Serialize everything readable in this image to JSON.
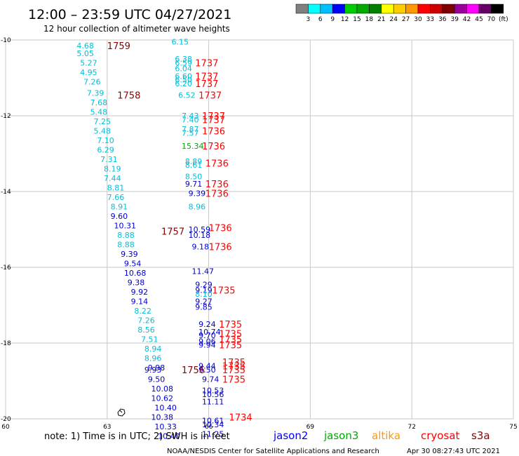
{
  "header": {
    "title": "12:00 – 23:59 UTC 04/27/2021",
    "subtitle": "12 hour collection of altimeter wave heights"
  },
  "colorbar": {
    "colors": [
      "#808080",
      "#00ffff",
      "#00bfff",
      "#0000ff",
      "#00cc00",
      "#00aa00",
      "#008000",
      "#ffff00",
      "#ffcc00",
      "#ff9900",
      "#ff0000",
      "#cc0000",
      "#800000",
      "#990099",
      "#ff00ff",
      "#660066",
      "#000000"
    ],
    "labels": [
      "3",
      "6",
      "9",
      "12",
      "15",
      "18",
      "21",
      "24",
      "27",
      "30",
      "33",
      "36",
      "39",
      "42",
      "45",
      "70",
      "(ft)"
    ]
  },
  "axes": {
    "lat_labels": [
      "-10",
      "-12",
      "-14",
      "-16",
      "-18",
      "-20"
    ],
    "lon_labels": [
      "60",
      "63",
      "66",
      "69",
      "72",
      "75"
    ],
    "lat_range": [
      -20,
      -10
    ],
    "lon_range": [
      60,
      75
    ],
    "lat_grid": [
      -20,
      -18,
      -16,
      -14,
      -12,
      -10
    ],
    "lon_grid": [
      63,
      66,
      69,
      72
    ]
  },
  "footer": {
    "note": "note: 1) Time is in UTC; 2) SWH is in feet",
    "credit": "NOAA/NESDIS Center for Satellite Applications and Research",
    "timestamp": "Apr 30 08:27:43 UTC 2021"
  },
  "legend": [
    {
      "name": "jason2",
      "color": "#0000ff"
    },
    {
      "name": "jason3",
      "color": "#00aa00"
    },
    {
      "name": "altika",
      "color": "#ff9900"
    },
    {
      "name": "cryosat",
      "color": "#ff0000"
    },
    {
      "name": "s3a",
      "color": "#8b0000"
    }
  ],
  "observations": [
    {
      "lat": -10.15,
      "lon": 62.1,
      "swh": "4.68",
      "c": "cyan"
    },
    {
      "lat": -10.35,
      "lon": 62.1,
      "swh": "5.05",
      "c": "cyan"
    },
    {
      "lat": -10.6,
      "lon": 62.2,
      "swh": "5.27",
      "c": "cyan"
    },
    {
      "lat": -10.85,
      "lon": 62.2,
      "swh": "4.95",
      "c": "cyan"
    },
    {
      "lat": -11.1,
      "lon": 62.3,
      "swh": "7.26",
      "c": "cyan"
    },
    {
      "lat": -11.4,
      "lon": 62.4,
      "swh": "7.39",
      "c": "cyan"
    },
    {
      "lat": -11.65,
      "lon": 62.5,
      "swh": "7.68",
      "c": "cyan"
    },
    {
      "lat": -11.9,
      "lon": 62.5,
      "swh": "5.48",
      "c": "cyan"
    },
    {
      "lat": -12.15,
      "lon": 62.6,
      "swh": "7.25",
      "c": "cyan"
    },
    {
      "lat": -12.4,
      "lon": 62.6,
      "swh": "5.48",
      "c": "cyan"
    },
    {
      "lat": -12.65,
      "lon": 62.7,
      "swh": "7.10",
      "c": "cyan"
    },
    {
      "lat": -12.9,
      "lon": 62.7,
      "swh": "6.29",
      "c": "cyan"
    },
    {
      "lat": -13.15,
      "lon": 62.8,
      "swh": "7.31",
      "c": "cyan"
    },
    {
      "lat": -13.4,
      "lon": 62.9,
      "swh": "8.19",
      "c": "cyan"
    },
    {
      "lat": -13.65,
      "lon": 62.9,
      "swh": "7.44",
      "c": "cyan"
    },
    {
      "lat": -13.9,
      "lon": 63.0,
      "swh": "8.81",
      "c": "cyan"
    },
    {
      "lat": -14.15,
      "lon": 63.0,
      "swh": "7.66",
      "c": "cyan"
    },
    {
      "lat": -14.4,
      "lon": 63.1,
      "swh": "8.91",
      "c": "cyan"
    },
    {
      "lat": -14.65,
      "lon": 63.1,
      "swh": "9.60",
      "c": "blue"
    },
    {
      "lat": -14.9,
      "lon": 63.2,
      "swh": "10.31",
      "c": "blue"
    },
    {
      "lat": -15.15,
      "lon": 63.3,
      "swh": "8.88",
      "c": "cyan"
    },
    {
      "lat": -15.4,
      "lon": 63.3,
      "swh": "8.88",
      "c": "cyan"
    },
    {
      "lat": -15.65,
      "lon": 63.4,
      "swh": "9.39",
      "c": "blue"
    },
    {
      "lat": -15.9,
      "lon": 63.5,
      "swh": "9.54",
      "c": "blue"
    },
    {
      "lat": -16.15,
      "lon": 63.5,
      "swh": "10.68",
      "c": "blue"
    },
    {
      "lat": -16.4,
      "lon": 63.6,
      "swh": "9.38",
      "c": "blue"
    },
    {
      "lat": -16.65,
      "lon": 63.7,
      "swh": "9.92",
      "c": "blue"
    },
    {
      "lat": -16.9,
      "lon": 63.7,
      "swh": "9.14",
      "c": "blue"
    },
    {
      "lat": -17.15,
      "lon": 63.8,
      "swh": "8.22",
      "c": "cyan"
    },
    {
      "lat": -17.4,
      "lon": 63.9,
      "swh": "7.26",
      "c": "cyan"
    },
    {
      "lat": -17.65,
      "lon": 63.9,
      "swh": "8.56",
      "c": "cyan"
    },
    {
      "lat": -17.9,
      "lon": 64.0,
      "swh": "7.51",
      "c": "cyan"
    },
    {
      "lat": -18.15,
      "lon": 64.1,
      "swh": "8.94",
      "c": "cyan"
    },
    {
      "lat": -18.4,
      "lon": 64.1,
      "swh": "8.96",
      "c": "cyan"
    },
    {
      "lat": -18.65,
      "lon": 64.2,
      "swh": "9.98",
      "c": "blue"
    },
    {
      "lat": -18.7,
      "lon": 64.1,
      "swh": "9.93",
      "c": "blue"
    },
    {
      "lat": -18.95,
      "lon": 64.2,
      "swh": "9.50",
      "c": "blue"
    },
    {
      "lat": -19.2,
      "lon": 64.3,
      "swh": "10.08",
      "c": "blue"
    },
    {
      "lat": -19.45,
      "lon": 64.3,
      "swh": "10.62",
      "c": "blue"
    },
    {
      "lat": -19.7,
      "lon": 64.4,
      "swh": "10.40",
      "c": "blue"
    },
    {
      "lat": -19.95,
      "lon": 64.3,
      "swh": "10.38",
      "c": "blue"
    },
    {
      "lat": -20.2,
      "lon": 64.4,
      "swh": "10.33",
      "c": "blue"
    },
    {
      "lat": -20.45,
      "lon": 64.5,
      "swh": "10.40",
      "c": "blue"
    },
    {
      "lat": -10.05,
      "lon": 64.9,
      "swh": "6.15",
      "c": "cyan"
    },
    {
      "lat": -10.5,
      "lon": 65.0,
      "swh": "6.38",
      "c": "cyan"
    },
    {
      "lat": -10.6,
      "lon": 65.0,
      "swh": "6.59",
      "c": "cyan"
    },
    {
      "lat": -10.75,
      "lon": 65.0,
      "swh": "6.04",
      "c": "cyan"
    },
    {
      "lat": -10.95,
      "lon": 65.0,
      "swh": "6.60",
      "c": "cyan"
    },
    {
      "lat": -11.05,
      "lon": 65.0,
      "swh": "6.50",
      "c": "cyan"
    },
    {
      "lat": -11.15,
      "lon": 65.0,
      "swh": "6.20",
      "c": "cyan"
    },
    {
      "lat": -11.45,
      "lon": 65.1,
      "swh": "6.52",
      "c": "cyan"
    },
    {
      "lat": -12.0,
      "lon": 65.2,
      "swh": "7.43",
      "c": "cyan"
    },
    {
      "lat": -12.1,
      "lon": 65.2,
      "swh": "7.40",
      "c": "cyan"
    },
    {
      "lat": -12.35,
      "lon": 65.2,
      "swh": "7.87",
      "c": "cyan"
    },
    {
      "lat": -12.45,
      "lon": 65.2,
      "swh": "7.57",
      "c": "cyan"
    },
    {
      "lat": -12.8,
      "lon": 65.2,
      "swh": "15.34",
      "c": "green"
    },
    {
      "lat": -13.2,
      "lon": 65.3,
      "swh": "8.89",
      "c": "cyan"
    },
    {
      "lat": -13.3,
      "lon": 65.3,
      "swh": "8.61",
      "c": "cyan"
    },
    {
      "lat": -13.6,
      "lon": 65.3,
      "swh": "8.50",
      "c": "cyan"
    },
    {
      "lat": -13.8,
      "lon": 65.3,
      "swh": "9.71",
      "c": "blue"
    },
    {
      "lat": -14.05,
      "lon": 65.4,
      "swh": "9.39",
      "c": "blue"
    },
    {
      "lat": -14.4,
      "lon": 65.4,
      "swh": "8.96",
      "c": "cyan"
    },
    {
      "lat": -15.0,
      "lon": 65.4,
      "swh": "10.59",
      "c": "blue"
    },
    {
      "lat": -15.15,
      "lon": 65.4,
      "swh": "10.18",
      "c": "blue"
    },
    {
      "lat": -15.45,
      "lon": 65.5,
      "swh": "9.18",
      "c": "blue"
    },
    {
      "lat": -16.1,
      "lon": 65.5,
      "swh": "11.47",
      "c": "blue"
    },
    {
      "lat": -16.45,
      "lon": 65.6,
      "swh": "9.29",
      "c": "blue"
    },
    {
      "lat": -16.6,
      "lon": 65.6,
      "swh": "9.19",
      "c": "blue"
    },
    {
      "lat": -16.7,
      "lon": 65.6,
      "swh": "8.10",
      "c": "cyan"
    },
    {
      "lat": -16.9,
      "lon": 65.6,
      "swh": "9.27",
      "c": "blue"
    },
    {
      "lat": -17.05,
      "lon": 65.6,
      "swh": "9.85",
      "c": "blue"
    },
    {
      "lat": -17.5,
      "lon": 65.7,
      "swh": "9.24",
      "c": "blue"
    },
    {
      "lat": -17.7,
      "lon": 65.7,
      "swh": "10.74",
      "c": "blue"
    },
    {
      "lat": -17.8,
      "lon": 65.7,
      "swh": "9.70",
      "c": "blue"
    },
    {
      "lat": -17.95,
      "lon": 65.7,
      "swh": "9.06",
      "c": "blue"
    },
    {
      "lat": -18.05,
      "lon": 65.7,
      "swh": "9.94",
      "c": "blue"
    },
    {
      "lat": -18.6,
      "lon": 65.7,
      "swh": "9.44",
      "c": "blue"
    },
    {
      "lat": -18.7,
      "lon": 65.7,
      "swh": "9.50",
      "c": "blue"
    },
    {
      "lat": -18.95,
      "lon": 65.8,
      "swh": "9.74",
      "c": "blue"
    },
    {
      "lat": -19.25,
      "lon": 65.8,
      "swh": "10.53",
      "c": "blue"
    },
    {
      "lat": -19.35,
      "lon": 65.8,
      "swh": "10.56",
      "c": "blue"
    },
    {
      "lat": -19.55,
      "lon": 65.8,
      "swh": "11.11",
      "c": "blue"
    },
    {
      "lat": -20.05,
      "lon": 65.8,
      "swh": "10.61",
      "c": "blue"
    },
    {
      "lat": -20.15,
      "lon": 65.8,
      "swh": "10.34",
      "c": "blue"
    },
    {
      "lat": -20.4,
      "lon": 65.8,
      "swh": "11.25",
      "c": "blue"
    }
  ],
  "track_times": [
    {
      "lat": -10.15,
      "lon": 63.0,
      "text": "1759",
      "c": "darkred"
    },
    {
      "lat": -11.45,
      "lon": 63.3,
      "text": "1758",
      "c": "darkred"
    },
    {
      "lat": -15.05,
      "lon": 64.6,
      "text": "1757",
      "c": "darkred"
    },
    {
      "lat": -18.7,
      "lon": 65.2,
      "text": "1756",
      "c": "darkred"
    },
    {
      "lat": -10.6,
      "lon": 65.6,
      "text": "1737",
      "c": "red"
    },
    {
      "lat": -10.95,
      "lon": 65.6,
      "text": "1737",
      "c": "red"
    },
    {
      "lat": -11.15,
      "lon": 65.6,
      "text": "1737",
      "c": "red"
    },
    {
      "lat": -11.45,
      "lon": 65.7,
      "text": "1737",
      "c": "red"
    },
    {
      "lat": -12.0,
      "lon": 65.8,
      "text": "1737",
      "c": "red"
    },
    {
      "lat": -12.1,
      "lon": 65.8,
      "text": "1737",
      "c": "red"
    },
    {
      "lat": -12.4,
      "lon": 65.8,
      "text": "1736",
      "c": "red"
    },
    {
      "lat": -12.8,
      "lon": 65.8,
      "text": "1736",
      "c": "red"
    },
    {
      "lat": -13.25,
      "lon": 65.9,
      "text": "1736",
      "c": "red"
    },
    {
      "lat": -13.8,
      "lon": 65.9,
      "text": "1736",
      "c": "red"
    },
    {
      "lat": -14.05,
      "lon": 65.9,
      "text": "1736",
      "c": "red"
    },
    {
      "lat": -14.95,
      "lon": 66.0,
      "text": "1736",
      "c": "red"
    },
    {
      "lat": -15.45,
      "lon": 66.0,
      "text": "1736",
      "c": "red"
    },
    {
      "lat": -16.6,
      "lon": 66.1,
      "text": "1735",
      "c": "red"
    },
    {
      "lat": -17.5,
      "lon": 66.3,
      "text": "1735",
      "c": "red"
    },
    {
      "lat": -17.75,
      "lon": 66.3,
      "text": "1735",
      "c": "red"
    },
    {
      "lat": -17.9,
      "lon": 66.3,
      "text": "1735",
      "c": "red"
    },
    {
      "lat": -18.05,
      "lon": 66.3,
      "text": "1735",
      "c": "red"
    },
    {
      "lat": -18.5,
      "lon": 66.4,
      "text": "1735",
      "c": "red"
    },
    {
      "lat": -18.6,
      "lon": 66.4,
      "text": "1735",
      "c": "red"
    },
    {
      "lat": -18.7,
      "lon": 66.4,
      "text": "1735",
      "c": "red"
    },
    {
      "lat": -18.95,
      "lon": 66.4,
      "text": "1735",
      "c": "red"
    },
    {
      "lat": -19.95,
      "lon": 66.6,
      "text": "1734",
      "c": "red"
    }
  ],
  "palette": {
    "cyan": "#00bfd8",
    "blue": "#0000cc",
    "green": "#00aa00",
    "red": "#ff0000",
    "darkred": "#8b0000",
    "grid": "#c8c8c8",
    "coast": "#000000"
  }
}
